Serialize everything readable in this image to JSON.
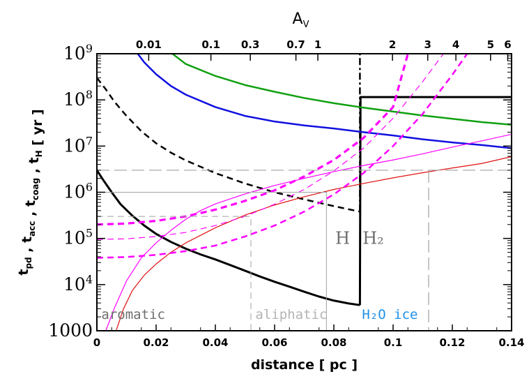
{
  "chart_data": {
    "type": "line",
    "xlabel": "distance [ pc ]",
    "ylabel": "t_pd , t_acc , t_coag , t_H [ yr ]",
    "top_axis_label": "A_V",
    "xlim": [
      0,
      0.14
    ],
    "ylim": [
      1000,
      1000000000
    ],
    "y_scale": "log",
    "grid": false,
    "x_ticks": [
      0,
      0.02,
      0.04,
      0.06,
      0.08,
      0.1,
      0.12,
      0.14
    ],
    "x_tick_labels": [
      "0",
      "0.02",
      "0.04",
      "0.06",
      "0.08",
      "0.1",
      "0.12",
      "0.14"
    ],
    "y_ticks": [
      1000,
      10000,
      100000,
      1000000,
      10000000,
      100000000,
      1000000000
    ],
    "y_tick_labels": [
      "1000",
      "10^4",
      "10^5",
      "10^6",
      "10^7",
      "10^8",
      "10^9"
    ],
    "top_ticks": [
      {
        "label": "0.01",
        "x": 0.0175
      },
      {
        "label": "0.1",
        "x": 0.0385
      },
      {
        "label": "0.3",
        "x": 0.0518
      },
      {
        "label": "0.7",
        "x": 0.0672
      },
      {
        "label": "1",
        "x": 0.0746
      },
      {
        "label": "2",
        "x": 0.0998
      },
      {
        "label": "3",
        "x": 0.1117
      },
      {
        "label": "4",
        "x": 0.1212
      },
      {
        "label": "5",
        "x": 0.1329
      },
      {
        "label": "6",
        "x": 0.1387
      }
    ],
    "series": [
      {
        "color": "#000000",
        "style": "solid",
        "width": 3,
        "x": [
          0,
          0.002,
          0.005,
          0.008,
          0.012,
          0.016,
          0.02,
          0.025,
          0.03,
          0.035,
          0.04,
          0.045,
          0.05,
          0.055,
          0.06,
          0.065,
          0.07,
          0.075,
          0.08,
          0.085,
          0.0888
        ],
        "y": [
          3000000,
          1900000,
          1000000,
          550000,
          310000,
          190000,
          125000,
          84000,
          60000,
          45000,
          35000,
          26500,
          20000,
          15000,
          11500,
          9000,
          7000,
          5500,
          4500,
          3900,
          3600
        ]
      },
      {
        "color": "#000000",
        "style": "solid",
        "width": 3,
        "x": [
          0.0888,
          0.089,
          0.14
        ],
        "y": [
          3600,
          115000000,
          115000000
        ]
      },
      {
        "color": "#000000",
        "style": "dashed",
        "width": 2.5,
        "x": [
          0,
          0.003,
          0.006,
          0.01,
          0.015,
          0.02,
          0.025,
          0.03,
          0.04,
          0.05,
          0.06,
          0.07,
          0.08,
          0.0888
        ],
        "y": [
          300000000,
          170000000,
          90000000,
          45000000,
          21000000,
          11500000,
          7200000,
          4900000,
          2600000,
          1550000,
          1000000,
          700000,
          500000,
          380000
        ]
      },
      {
        "color": "#000000",
        "style": "dashdot",
        "width": 2.5,
        "x": [
          0.0888,
          0.0888
        ],
        "y": [
          380000,
          1000000000
        ]
      },
      {
        "color": "#1010e0",
        "style": "solid",
        "width": 2.5,
        "x": [
          0.0138,
          0.016,
          0.02,
          0.025,
          0.03,
          0.04,
          0.05,
          0.06,
          0.07,
          0.08,
          0.09,
          0.1,
          0.11,
          0.12,
          0.13,
          0.14
        ],
        "y": [
          1000000000,
          650000000,
          360000000,
          200000000,
          130000000,
          70000000,
          45000000,
          34000000,
          28000000,
          24000000,
          20000000,
          17000000,
          14000000,
          12000000,
          10500000,
          9000000
        ]
      },
      {
        "color": "#10a010",
        "style": "solid",
        "width": 2.5,
        "x": [
          0.0255,
          0.03,
          0.04,
          0.05,
          0.06,
          0.07,
          0.08,
          0.09,
          0.1,
          0.11,
          0.12,
          0.13,
          0.14
        ],
        "y": [
          1000000000,
          600000000,
          330000000,
          210000000,
          150000000,
          110000000,
          85000000,
          68000000,
          56000000,
          46000000,
          39000000,
          33000000,
          29000000
        ]
      },
      {
        "color": "#e01010",
        "style": "solid",
        "width": 1.2,
        "x": [
          0.0065,
          0.009,
          0.012,
          0.016,
          0.02,
          0.025,
          0.03,
          0.04,
          0.05,
          0.06,
          0.07,
          0.08,
          0.09,
          0.1,
          0.11,
          0.12,
          0.13,
          0.14
        ],
        "y": [
          1000,
          3000,
          7500,
          16000,
          28000,
          50000,
          80000,
          170000,
          320000,
          530000,
          800000,
          1150000,
          1550000,
          2050000,
          2650000,
          3350000,
          4200000,
          5900000
        ]
      },
      {
        "color": "#ff00ff",
        "style": "solid",
        "width": 1.2,
        "x": [
          0.003,
          0.006,
          0.01,
          0.015,
          0.02,
          0.025,
          0.03,
          0.035,
          0.04,
          0.05,
          0.06,
          0.07,
          0.08,
          0.09,
          0.1,
          0.11,
          0.12,
          0.13,
          0.14
        ],
        "y": [
          1000,
          3200,
          12000,
          38000,
          80000,
          150000,
          260000,
          400000,
          560000,
          920000,
          1400000,
          2000000,
          2800000,
          3800000,
          5000000,
          6800000,
          9500000,
          13000000,
          18000000
        ]
      },
      {
        "color": "#ff00ff",
        "style": "dashed",
        "width": 3.2,
        "x": [
          0,
          0.01,
          0.02,
          0.03,
          0.04,
          0.05,
          0.06,
          0.07,
          0.08,
          0.09,
          0.1,
          0.105
        ],
        "y": [
          200000,
          210000,
          240000,
          300000,
          420000,
          650000,
          1100000,
          2200000,
          5000000,
          15000000,
          70000000,
          1000000000
        ]
      },
      {
        "color": "#ff00ff",
        "style": "dashed",
        "width": 1.2,
        "x": [
          0,
          0.01,
          0.02,
          0.03,
          0.04,
          0.05,
          0.06,
          0.07,
          0.08,
          0.09,
          0.1,
          0.11,
          0.117
        ],
        "y": [
          95000,
          98000,
          110000,
          135000,
          190000,
          300000,
          550000,
          1150000,
          2900000,
          9000000,
          40000000,
          250000000,
          1000000000
        ]
      },
      {
        "color": "#ff00ff",
        "style": "dashed",
        "width": 2.5,
        "x": [
          0,
          0.01,
          0.02,
          0.03,
          0.04,
          0.05,
          0.06,
          0.07,
          0.08,
          0.09,
          0.1,
          0.11,
          0.12,
          0.125
        ],
        "y": [
          38000,
          39500,
          44000,
          53000,
          70000,
          110000,
          190000,
          380000,
          900000,
          2600000,
          10000000,
          50000000,
          350000000,
          1000000000
        ]
      },
      {
        "color": "#a0a0a0",
        "style": "solid",
        "width": 1,
        "x": [
          0,
          0.0775,
          0.0775
        ],
        "y": [
          1000000,
          1000000,
          1000
        ]
      },
      {
        "color": "#a0a0a0",
        "style": "dashed",
        "width": 1,
        "x": [
          0,
          0.052,
          0.052
        ],
        "y": [
          300000,
          300000,
          1000
        ]
      },
      {
        "color": "#a0a0a0",
        "style": "longdash",
        "width": 1.2,
        "x": [
          0,
          0.14
        ],
        "y": [
          3000000,
          3000000
        ]
      },
      {
        "color": "#a0a0a0",
        "style": "longdash",
        "width": 1.2,
        "x": [
          0.112,
          0.112
        ],
        "y": [
          3000000,
          1000
        ]
      }
    ],
    "annotations": [
      {
        "text": "aromatic",
        "color": "#6e6e6e"
      },
      {
        "text": "aliphatic",
        "color": "#b4b4b4"
      },
      {
        "text": "H₂O ice",
        "color": "#1e90e8"
      },
      {
        "text": "H",
        "color": "#6e6e6e"
      },
      {
        "text": "H₂",
        "color": "#6e6e6e"
      }
    ]
  }
}
